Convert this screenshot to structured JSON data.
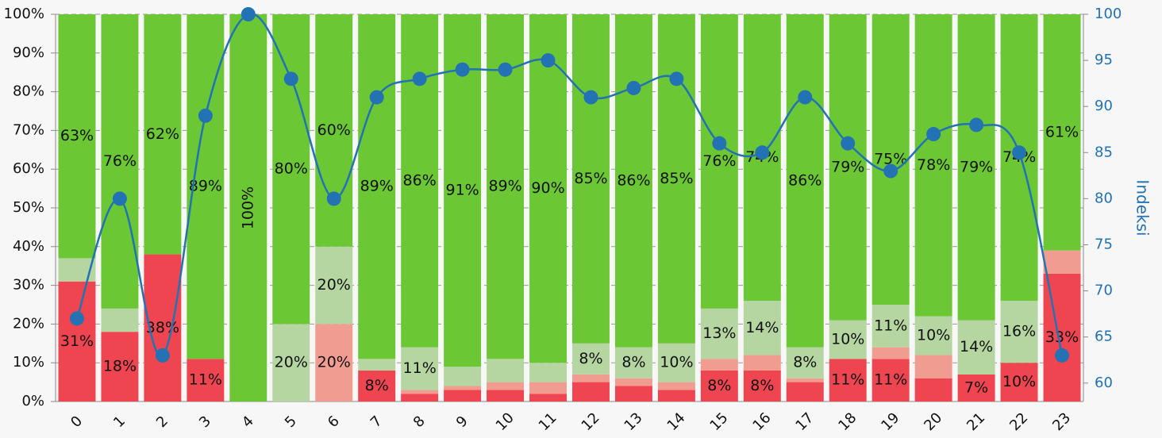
{
  "chart_data": {
    "type": "bar",
    "stacked": true,
    "categories": [
      "0",
      "1",
      "2",
      "3",
      "4",
      "5",
      "6",
      "7",
      "8",
      "9",
      "10",
      "11",
      "12",
      "13",
      "14",
      "15",
      "16",
      "17",
      "18",
      "19",
      "20",
      "21",
      "22",
      "23"
    ],
    "ylim": [
      0,
      100
    ],
    "yticks": [
      {
        "value": 0,
        "label": "0%"
      },
      {
        "value": 10,
        "label": "10%"
      },
      {
        "value": 20,
        "label": "20%"
      },
      {
        "value": 30,
        "label": "30%"
      },
      {
        "value": 40,
        "label": "40%"
      },
      {
        "value": 50,
        "label": "50%"
      },
      {
        "value": 60,
        "label": "60%"
      },
      {
        "value": 70,
        "label": "70%"
      },
      {
        "value": 80,
        "label": "80%"
      },
      {
        "value": 90,
        "label": "90%"
      },
      {
        "value": 100,
        "label": "100%"
      }
    ],
    "y2lim": [
      58,
      100
    ],
    "y2ticks": [
      60,
      65,
      70,
      75,
      80,
      85,
      90,
      95,
      100
    ],
    "y2label": "Indeksi",
    "grid": true,
    "series": [
      {
        "color": "#ef4550",
        "values": [
          31,
          18,
          38,
          11,
          0,
          0,
          0,
          8,
          2,
          3,
          3,
          2,
          5,
          4,
          3,
          8,
          8,
          5,
          11,
          11,
          6,
          7,
          10,
          33
        ],
        "value_labels": [
          "31%",
          "18%",
          "38%",
          "11%",
          null,
          null,
          null,
          "8%",
          null,
          null,
          null,
          null,
          null,
          null,
          null,
          "8%",
          "8%",
          null,
          "11%",
          "11%",
          null,
          "7%",
          "10%",
          "33%"
        ]
      },
      {
        "color": "#f19c91",
        "values": [
          0,
          0,
          0,
          0,
          0,
          0,
          20,
          0,
          1,
          1,
          2,
          3,
          2,
          2,
          2,
          3,
          4,
          1,
          0,
          3,
          6,
          0,
          0,
          6
        ],
        "value_labels": [
          null,
          null,
          null,
          null,
          null,
          null,
          "20%",
          null,
          null,
          null,
          null,
          null,
          null,
          null,
          null,
          null,
          null,
          null,
          null,
          null,
          null,
          null,
          null,
          null
        ]
      },
      {
        "color": "#b5d6a0",
        "values": [
          6,
          6,
          0,
          0,
          0,
          20,
          20,
          3,
          11,
          5,
          6,
          5,
          8,
          8,
          10,
          13,
          14,
          8,
          10,
          11,
          10,
          14,
          16,
          0
        ],
        "value_labels": [
          null,
          null,
          null,
          null,
          null,
          "20%",
          "20%",
          null,
          "11%",
          null,
          null,
          null,
          "8%",
          "8%",
          "10%",
          "13%",
          "14%",
          "8%",
          "10%",
          "11%",
          "10%",
          "14%",
          "16%",
          null
        ]
      },
      {
        "color": "#6cc734",
        "values": [
          63,
          76,
          62,
          89,
          100,
          80,
          60,
          89,
          86,
          91,
          89,
          90,
          85,
          86,
          85,
          76,
          74,
          86,
          79,
          75,
          78,
          79,
          74,
          61
        ],
        "value_labels": [
          "63%",
          "76%",
          "62%",
          "89%",
          "100%",
          "80%",
          "60%",
          "89%",
          "86%",
          "91%",
          "89%",
          "90%",
          "85%",
          "86%",
          "85%",
          "76%",
          "74%",
          "86%",
          "79%",
          "75%",
          "78%",
          "79%",
          "74%",
          "61%"
        ]
      },
      {
        "type": "line",
        "axis": "y2",
        "color": "#2272b4",
        "values": [
          67,
          80,
          63,
          89,
          100,
          93,
          80,
          91,
          93,
          94,
          94,
          95,
          91,
          92,
          93,
          86,
          85,
          91,
          86,
          83,
          87,
          88,
          85,
          63
        ]
      }
    ]
  }
}
